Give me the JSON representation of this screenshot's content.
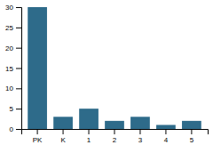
{
  "chart_data": {
    "type": "bar",
    "categories": [
      "PK",
      "K",
      "1",
      "2",
      "3",
      "4",
      "5"
    ],
    "values": [
      30,
      3,
      5,
      2,
      3,
      1,
      2
    ],
    "color": "#2e6b8a",
    "ylim": [
      0,
      30
    ],
    "yticks": [
      0,
      5,
      10,
      15,
      20,
      25,
      30
    ],
    "grid": false
  }
}
